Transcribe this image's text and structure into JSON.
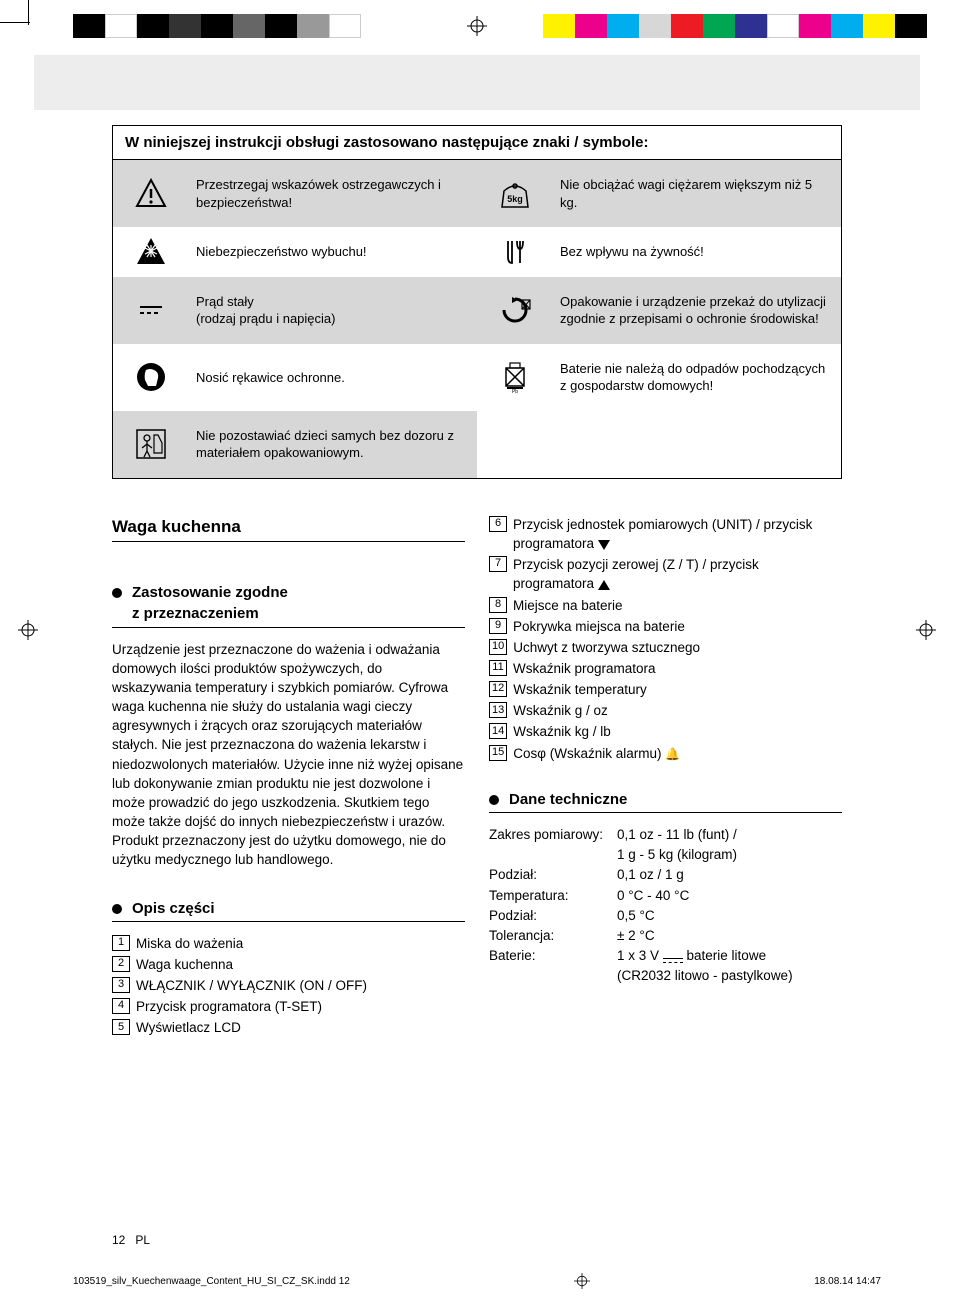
{
  "printbar": {
    "left_colors": [
      "#000000",
      "#ffffff",
      "#000000",
      "#333333",
      "#000000",
      "#666666",
      "#000000",
      "#999999",
      "#ffffff"
    ],
    "right_colors": [
      "#fff200",
      "#ec008c",
      "#00aeef",
      "#d7d7d7",
      "#ed1c24",
      "#00a651",
      "#2e3192",
      "#ffffff",
      "#ec008c",
      "#00aeef",
      "#fff200",
      "#000000"
    ]
  },
  "symbols": {
    "title": "W niniejszej instrukcji obsługi zastosowano następujące znaki / symbole:",
    "rows": [
      {
        "icon": "warning",
        "text": "Przestrzegaj wskazówek ostrzegawczych i bezpieczeństwa!",
        "shade": "dark"
      },
      {
        "icon": "5kg",
        "text": "Nie obciążać wagi ciężarem większym niż 5 kg.",
        "shade": "dark"
      },
      {
        "icon": "explosion",
        "text": "Niebezpieczeństwo wybuchu!",
        "shade": "light"
      },
      {
        "icon": "food",
        "text": "Bez wpływu na żywność!",
        "shade": "light"
      },
      {
        "icon": "dc",
        "text": "Prąd stały\n(rodzaj prądu i napięcia)",
        "shade": "dark"
      },
      {
        "icon": "recycle",
        "text": "Opakowanie i urządzenie przekaż do utylizacji zgodnie z przepisami o ochronie środowiska!",
        "shade": "dark"
      },
      {
        "icon": "gloves",
        "text": "Nosić rękawice ochronne.",
        "shade": "light"
      },
      {
        "icon": "nobattery",
        "text": "Baterie nie należą do odpadów pochodzących z gospodarstw domowych!",
        "shade": "light"
      },
      {
        "icon": "child",
        "text": "Nie pozostawiać dzieci samych bez dozoru z materiałem opakowaniowym.",
        "shade": "dark"
      }
    ]
  },
  "left": {
    "h1": "Waga kuchenna",
    "h2a": "Zastosowanie zgodne z przeznaczeniem",
    "para": "Urządzenie jest przeznaczone do ważenia i odważania domowych ilości produktów spożywczych, do wskazywania temperatury i szybkich pomiarów. Cyfrowa waga kuchenna nie służy do ustalania wagi cieczy agresywnych i żrących oraz szorujących materiałów stałych. Nie jest przeznaczona do ważenia lekarstw i niedozwolonych materiałów. Użycie inne niż wyżej opisane lub dokonywanie zmian produktu nie jest dozwolone i może prowadzić do jego uszkodzenia. Skutkiem tego może także dojść do innych niebezpieczeństw i urazów. Produkt przeznaczony jest do użytku domowego, nie do użytku medycznego lub handlowego.",
    "h2b": "Opis części",
    "parts": [
      "Miska do ważenia",
      "Waga kuchenna",
      "WŁĄCZNIK / WYŁĄCZNIK (ON / OFF)",
      "Przycisk programatora (T-SET)",
      "Wyświetlacz LCD"
    ]
  },
  "right": {
    "parts": [
      {
        "n": "6",
        "t": "Przycisk jednostek pomiarowych (UNIT) / przycisk programatora",
        "icon": "down"
      },
      {
        "n": "7",
        "t": "Przycisk pozycji zerowej (Z / T) / przycisk programatora",
        "icon": "up"
      },
      {
        "n": "8",
        "t": "Miejsce na baterie"
      },
      {
        "n": "9",
        "t": "Pokrywka miejsca na baterie"
      },
      {
        "n": "10",
        "t": "Uchwyt z tworzywa sztucznego"
      },
      {
        "n": "11",
        "t": "Wskaźnik programatora"
      },
      {
        "n": "12",
        "t": "Wskaźnik temperatury"
      },
      {
        "n": "13",
        "t": "Wskaźnik g / oz"
      },
      {
        "n": "14",
        "t": "Wskaźnik kg / lb"
      },
      {
        "n": "15",
        "t": "Cosφ (Wskaźnik alarmu)",
        "icon": "bell"
      }
    ],
    "h2": "Dane techniczne",
    "specs": [
      {
        "l": "Zakres pomiarowy:",
        "v": "0,1 oz - 11 lb (funt) /"
      },
      {
        "l": "",
        "v": "1 g - 5 kg (kilogram)"
      },
      {
        "l": "Podział:",
        "v": "0,1 oz / 1 g"
      },
      {
        "l": "Temperatura:",
        "v": "0 °C - 40 °C"
      },
      {
        "l": "Podział:",
        "v": "0,5 °C"
      },
      {
        "l": "Tolerancja:",
        "v": "± 2 °C"
      },
      {
        "l": "Baterie:",
        "v": "1 x 3 V ⎓ baterie litowe"
      },
      {
        "l": "",
        "v": "(CR2032 litowo - pastylkowe)"
      }
    ]
  },
  "footer": {
    "page": "12",
    "lang": "PL"
  },
  "indd": {
    "file": "103519_silv_Kuechenwaage_Content_HU_SI_CZ_SK.indd   12",
    "date": "18.08.14   14:47"
  }
}
